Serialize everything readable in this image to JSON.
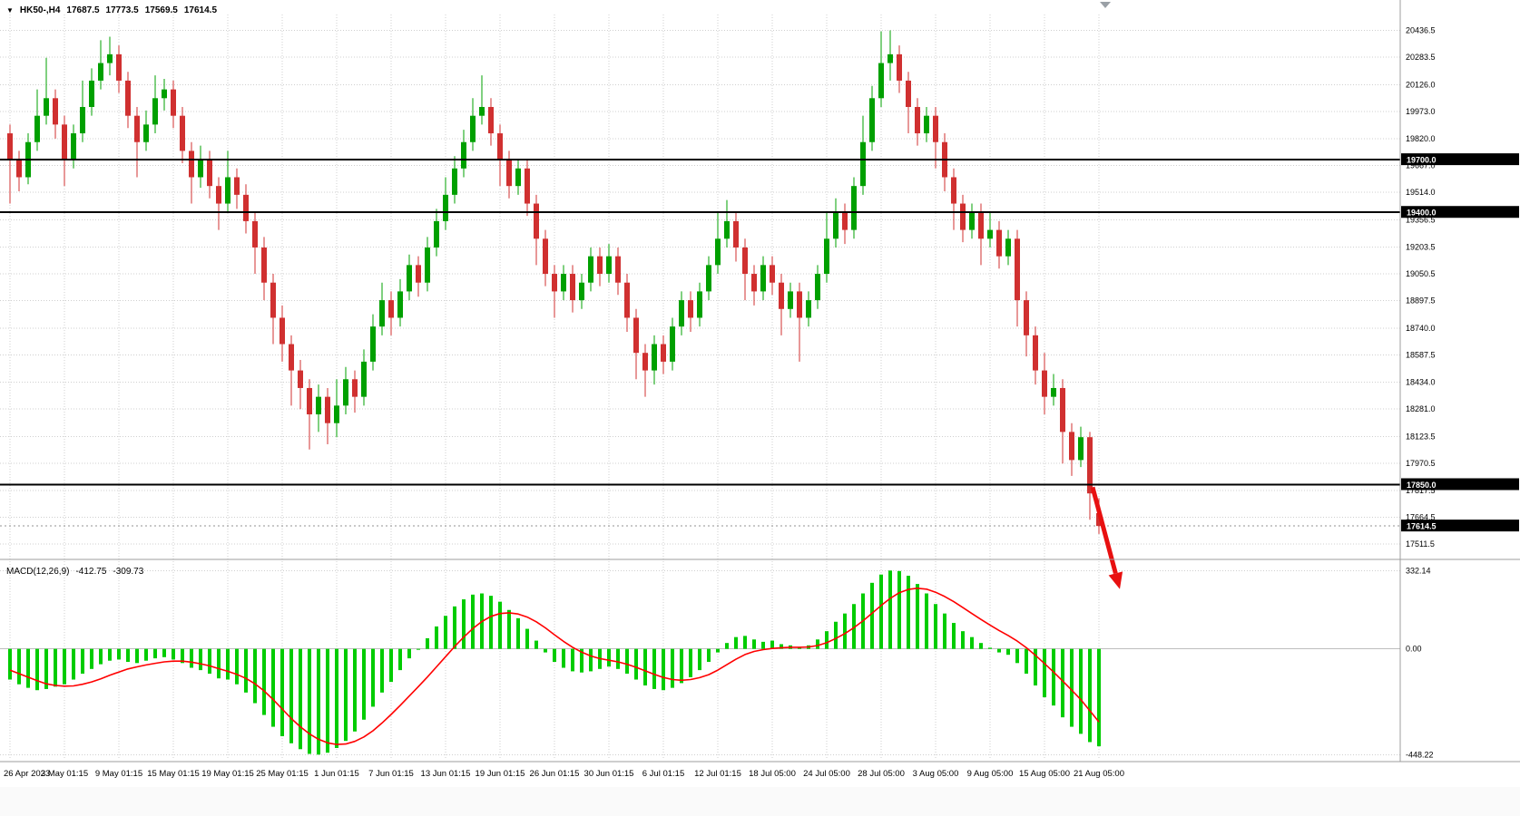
{
  "colors": {
    "up": "#00A000",
    "down": "#D03030",
    "macd_hist": "#00CC00",
    "macd_signal": "#FF0000",
    "level": "#000000",
    "grid": "#cfcfcf",
    "divider": "#9c9c9c",
    "arrow": "#E81010",
    "axis_text": "#000000",
    "current_price_line": "#909090",
    "shift_marker": "#9aa0a6"
  },
  "chart_data": [
    {
      "type": "candlestick",
      "title": "HK50-,H4",
      "ohlc_display": {
        "open": "17687.5",
        "high": "17773.5",
        "low": "17569.5",
        "close": "17614.5"
      },
      "ylim": [
        17450,
        20480
      ],
      "y_axis_labels": [
        20436.5,
        20283.5,
        20126.0,
        19973.0,
        19820.0,
        19667.0,
        19514.0,
        19356.5,
        19203.5,
        19050.5,
        18897.5,
        18740.0,
        18587.5,
        18434.0,
        18281.0,
        18123.5,
        17970.5,
        17817.5,
        17664.5,
        17511.5
      ],
      "horizontal_levels": [
        19700.0,
        19400.0,
        17850.0
      ],
      "current_price": 17614.5,
      "x_labels": [
        "26 Apr 2023",
        "3 May 01:15",
        "9 May 01:15",
        "15 May 01:15",
        "19 May 01:15",
        "25 May 01:15",
        "1 Jun 01:15",
        "7 Jun 01:15",
        "13 Jun 01:15",
        "19 Jun 01:15",
        "26 Jun 01:15",
        "30 Jun 01:15",
        "6 Jul 01:15",
        "12 Jul 01:15",
        "18 Jul 05:00",
        "24 Jul 05:00",
        "28 Jul 05:00",
        "3 Aug 05:00",
        "9 Aug 05:00",
        "15 Aug 05:00",
        "21 Aug 05:00"
      ],
      "candles_per_label": 6,
      "annotation": {
        "type": "arrow",
        "from": {
          "index": 119.3,
          "price": 17835
        },
        "to": {
          "index": 122.3,
          "price": 17255
        },
        "width": 5
      },
      "candles": [
        [
          19850,
          19900,
          19450,
          19700
        ],
        [
          19700,
          19750,
          19520,
          19600
        ],
        [
          19600,
          19850,
          19560,
          19800
        ],
        [
          19800,
          20100,
          19750,
          19950
        ],
        [
          19950,
          20280,
          19900,
          20050
        ],
        [
          20050,
          20100,
          19820,
          19900
        ],
        [
          19900,
          19950,
          19550,
          19700
        ],
        [
          19700,
          19900,
          19650,
          19850
        ],
        [
          19850,
          20150,
          19800,
          20000
        ],
        [
          20000,
          20220,
          19950,
          20150
        ],
        [
          20150,
          20380,
          20100,
          20250
        ],
        [
          20250,
          20400,
          20180,
          20300
        ],
        [
          20300,
          20350,
          20080,
          20150
        ],
        [
          20150,
          20200,
          19880,
          19950
        ],
        [
          19950,
          20000,
          19600,
          19800
        ],
        [
          19800,
          19980,
          19750,
          19900
        ],
        [
          19900,
          20180,
          19850,
          20050
        ],
        [
          20050,
          20160,
          19980,
          20100
        ],
        [
          20100,
          20150,
          19880,
          19950
        ],
        [
          19950,
          20000,
          19680,
          19750
        ],
        [
          19750,
          19800,
          19450,
          19600
        ],
        [
          19600,
          19780,
          19540,
          19700
        ],
        [
          19700,
          19750,
          19480,
          19550
        ],
        [
          19550,
          19600,
          19300,
          19450
        ],
        [
          19450,
          19750,
          19400,
          19600
        ],
        [
          19600,
          19650,
          19420,
          19500
        ],
        [
          19500,
          19560,
          19280,
          19350
        ],
        [
          19350,
          19400,
          19050,
          19200
        ],
        [
          19200,
          19260,
          18900,
          19000
        ],
        [
          19000,
          19050,
          18650,
          18800
        ],
        [
          18800,
          18870,
          18550,
          18650
        ],
        [
          18650,
          18700,
          18300,
          18500
        ],
        [
          18500,
          18560,
          18280,
          18400
        ],
        [
          18400,
          18450,
          18050,
          18250
        ],
        [
          18250,
          18420,
          18150,
          18350
        ],
        [
          18350,
          18400,
          18080,
          18200
        ],
        [
          18200,
          18450,
          18120,
          18300
        ],
        [
          18300,
          18520,
          18250,
          18450
        ],
        [
          18450,
          18500,
          18260,
          18350
        ],
        [
          18350,
          18620,
          18300,
          18550
        ],
        [
          18550,
          18820,
          18500,
          18750
        ],
        [
          18750,
          19000,
          18700,
          18900
        ],
        [
          18900,
          18950,
          18700,
          18800
        ],
        [
          18800,
          19020,
          18750,
          18950
        ],
        [
          18950,
          19160,
          18900,
          19100
        ],
        [
          19100,
          19150,
          18920,
          19000
        ],
        [
          19000,
          19260,
          18950,
          19200
        ],
        [
          19200,
          19420,
          19150,
          19350
        ],
        [
          19350,
          19600,
          19300,
          19500
        ],
        [
          19500,
          19720,
          19450,
          19650
        ],
        [
          19650,
          19870,
          19600,
          19800
        ],
        [
          19800,
          20050,
          19750,
          19950
        ],
        [
          19950,
          20180,
          19900,
          20000
        ],
        [
          20000,
          20050,
          19780,
          19850
        ],
        [
          19850,
          19900,
          19550,
          19700
        ],
        [
          19700,
          19750,
          19480,
          19550
        ],
        [
          19550,
          19700,
          19500,
          19650
        ],
        [
          19650,
          19700,
          19380,
          19450
        ],
        [
          19450,
          19500,
          19100,
          19250
        ],
        [
          19250,
          19300,
          18980,
          19050
        ],
        [
          19050,
          19100,
          18800,
          18950
        ],
        [
          18950,
          19100,
          18900,
          19050
        ],
        [
          19050,
          19100,
          18830,
          18900
        ],
        [
          18900,
          19050,
          18850,
          19000
        ],
        [
          19000,
          19200,
          18950,
          19150
        ],
        [
          19150,
          19200,
          18980,
          19050
        ],
        [
          19050,
          19220,
          19000,
          19150
        ],
        [
          19150,
          19200,
          18930,
          19000
        ],
        [
          19000,
          19050,
          18720,
          18800
        ],
        [
          18800,
          18850,
          18450,
          18600
        ],
        [
          18600,
          18650,
          18350,
          18500
        ],
        [
          18500,
          18700,
          18420,
          18650
        ],
        [
          18650,
          18700,
          18480,
          18550
        ],
        [
          18550,
          18800,
          18500,
          18750
        ],
        [
          18750,
          18950,
          18700,
          18900
        ],
        [
          18900,
          18950,
          18720,
          18800
        ],
        [
          18800,
          19000,
          18750,
          18950
        ],
        [
          18950,
          19150,
          18900,
          19100
        ],
        [
          19100,
          19400,
          19050,
          19250
        ],
        [
          19250,
          19470,
          19200,
          19350
        ],
        [
          19350,
          19400,
          19120,
          19200
        ],
        [
          19200,
          19250,
          18900,
          19050
        ],
        [
          19050,
          19100,
          18870,
          18950
        ],
        [
          18950,
          19150,
          18900,
          19100
        ],
        [
          19100,
          19150,
          18930,
          19000
        ],
        [
          19000,
          19050,
          18700,
          18850
        ],
        [
          18850,
          19000,
          18800,
          18950
        ],
        [
          18950,
          19000,
          18550,
          18800
        ],
        [
          18800,
          18950,
          18750,
          18900
        ],
        [
          18900,
          19100,
          18850,
          19050
        ],
        [
          19050,
          19400,
          19000,
          19250
        ],
        [
          19250,
          19480,
          19200,
          19400
        ],
        [
          19400,
          19450,
          19220,
          19300
        ],
        [
          19300,
          19600,
          19250,
          19550
        ],
        [
          19550,
          19950,
          19500,
          19800
        ],
        [
          19800,
          20120,
          19750,
          20050
        ],
        [
          20050,
          20430,
          20000,
          20250
        ],
        [
          20250,
          20436,
          20150,
          20300
        ],
        [
          20300,
          20350,
          20080,
          20150
        ],
        [
          20150,
          20200,
          19850,
          20000
        ],
        [
          20000,
          20050,
          19780,
          19850
        ],
        [
          19850,
          20000,
          19800,
          19950
        ],
        [
          19950,
          20000,
          19650,
          19800
        ],
        [
          19800,
          19850,
          19520,
          19600
        ],
        [
          19600,
          19650,
          19300,
          19450
        ],
        [
          19450,
          19500,
          19230,
          19300
        ],
        [
          19300,
          19450,
          19250,
          19400
        ],
        [
          19400,
          19450,
          19100,
          19250
        ],
        [
          19250,
          19400,
          19200,
          19300
        ],
        [
          19300,
          19350,
          19080,
          19150
        ],
        [
          19150,
          19300,
          19100,
          19250
        ],
        [
          19250,
          19300,
          18750,
          18900
        ],
        [
          18900,
          18950,
          18580,
          18700
        ],
        [
          18700,
          18750,
          18420,
          18500
        ],
        [
          18500,
          18600,
          18250,
          18350
        ],
        [
          18350,
          18480,
          18300,
          18400
        ],
        [
          18400,
          18450,
          17970,
          18150
        ],
        [
          18150,
          18200,
          17900,
          17990
        ],
        [
          17990,
          18180,
          17950,
          18120
        ],
        [
          18120,
          18150,
          17650,
          17800
        ],
        [
          17687.5,
          17773.5,
          17569.5,
          17614.5
        ]
      ]
    },
    {
      "type": "macd",
      "title": "MACD(12,26,9)",
      "value_main": "-412.75",
      "value_signal": "-309.73",
      "ylim": [
        -470,
        360
      ],
      "y_labels": [
        {
          "text": "332.14",
          "value": 332.14
        },
        {
          "text": "0.00",
          "value": 0
        },
        {
          "text": "-448.22",
          "value": -448.22
        }
      ],
      "histogram": [
        -130,
        -150,
        -165,
        -175,
        -170,
        -160,
        -150,
        -130,
        -105,
        -85,
        -65,
        -50,
        -45,
        -55,
        -60,
        -50,
        -40,
        -35,
        -45,
        -60,
        -80,
        -90,
        -105,
        -125,
        -130,
        -150,
        -185,
        -230,
        -280,
        -330,
        -370,
        -400,
        -425,
        -445,
        -448,
        -440,
        -420,
        -390,
        -350,
        -300,
        -245,
        -185,
        -140,
        -90,
        -40,
        0,
        45,
        95,
        140,
        180,
        210,
        230,
        235,
        225,
        200,
        165,
        130,
        85,
        35,
        -15,
        -55,
        -80,
        -95,
        -100,
        -95,
        -85,
        -75,
        -85,
        -105,
        -130,
        -155,
        -170,
        -175,
        -165,
        -145,
        -120,
        -90,
        -55,
        -15,
        25,
        50,
        55,
        40,
        30,
        35,
        20,
        15,
        5,
        15,
        40,
        75,
        115,
        150,
        190,
        235,
        280,
        315,
        332,
        330,
        310,
        275,
        235,
        190,
        150,
        110,
        75,
        50,
        25,
        5,
        -15,
        -25,
        -60,
        -105,
        -155,
        -205,
        -240,
        -290,
        -330,
        -360,
        -395,
        -412.75
      ],
      "signal": [
        -90,
        -105,
        -120,
        -135,
        -148,
        -155,
        -158,
        -157,
        -150,
        -140,
        -127,
        -112,
        -98,
        -85,
        -76,
        -68,
        -61,
        -55,
        -52,
        -52,
        -56,
        -63,
        -72,
        -84,
        -95,
        -108,
        -125,
        -148,
        -178,
        -215,
        -255,
        -295,
        -330,
        -360,
        -383,
        -398,
        -405,
        -403,
        -392,
        -373,
        -347,
        -314,
        -278,
        -240,
        -200,
        -160,
        -119,
        -76,
        -33,
        10,
        50,
        86,
        116,
        138,
        150,
        153,
        148,
        135,
        115,
        89,
        60,
        32,
        7,
        -14,
        -30,
        -41,
        -48,
        -55,
        -65,
        -78,
        -93,
        -108,
        -121,
        -130,
        -133,
        -130,
        -122,
        -109,
        -90,
        -67,
        -44,
        -24,
        -11,
        -3,
        2,
        5,
        7,
        7,
        8,
        14,
        26,
        44,
        65,
        90,
        119,
        151,
        184,
        214,
        238,
        252,
        257,
        253,
        240,
        222,
        200,
        175,
        150,
        125,
        101,
        78,
        57,
        33,
        5,
        -27,
        -62,
        -98,
        -136,
        -175,
        -215,
        -262,
        -309.73
      ]
    }
  ]
}
